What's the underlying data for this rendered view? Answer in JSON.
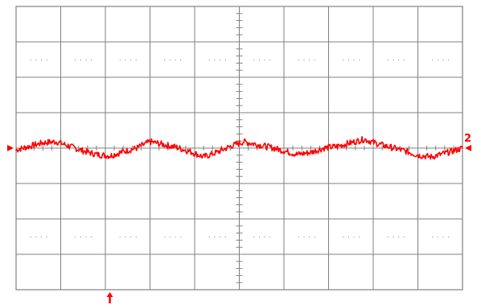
{
  "chart_data": {
    "type": "line",
    "title": "",
    "xlabel": "",
    "ylabel": "",
    "x_divisions": 10,
    "y_divisions": 8,
    "xlim": [
      0,
      10
    ],
    "ylim": [
      -4,
      4
    ],
    "grid": true,
    "channel_label": "2",
    "trace_color": "#ff0000",
    "grid_color": "#808080",
    "series": [
      {
        "x": [
          0,
          0.3,
          0.6,
          0.9,
          1.2,
          1.5,
          1.8,
          2.1,
          2.4,
          2.7,
          3.0,
          3.3,
          3.6,
          3.9,
          4.2,
          4.5,
          4.8,
          5.1,
          5.4,
          5.7,
          6.0,
          6.3,
          6.6,
          6.9,
          7.2,
          7.5,
          7.8,
          8.1,
          8.4,
          8.7,
          9.0,
          9.3,
          9.6,
          10.0
        ],
        "y": [
          -0.05,
          0.05,
          0.15,
          0.18,
          0.05,
          -0.08,
          -0.18,
          -0.22,
          -0.1,
          0.0,
          0.18,
          0.1,
          0.02,
          -0.1,
          -0.25,
          -0.12,
          0.05,
          0.18,
          0.1,
          0.02,
          -0.08,
          -0.18,
          -0.12,
          0.0,
          0.05,
          0.15,
          0.25,
          0.12,
          0.02,
          -0.08,
          -0.2,
          -0.25,
          -0.15,
          0.0
        ]
      }
    ],
    "markers": {
      "channel_ground_level": 0,
      "trigger_position": 2.1
    }
  }
}
